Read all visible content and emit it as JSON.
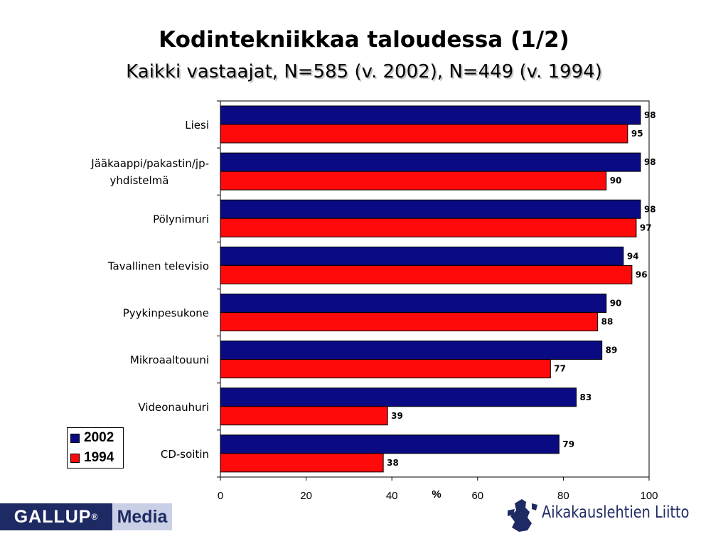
{
  "title": "Kodintekniikkaa taloudessa (1/2)",
  "subtitle": "Kaikki vastaajat, N=585 (v. 2002), N=449 (v. 1994)",
  "chart_data": {
    "type": "bar",
    "orientation": "horizontal",
    "categories": [
      [
        "Liesi"
      ],
      [
        "Jääkaappi/pakastin/jp-",
        "yhdistelmä"
      ],
      [
        "Pölynimuri"
      ],
      [
        "Tavallinen televisio"
      ],
      [
        "Pyykinpesukone"
      ],
      [
        "Mikroaaltouuni"
      ],
      [
        "Videonauhuri"
      ],
      [
        "CD-soitin"
      ]
    ],
    "series": [
      {
        "name": "2002",
        "color": "#0a0a82",
        "values": [
          98,
          98,
          98,
          94,
          90,
          89,
          83,
          79
        ]
      },
      {
        "name": "1994",
        "color": "#ff0a0a",
        "values": [
          95,
          90,
          97,
          96,
          88,
          77,
          39,
          38
        ]
      }
    ],
    "xlabel": "%",
    "xlim": [
      0,
      100
    ],
    "xticks": [
      0,
      20,
      40,
      60,
      80,
      100
    ],
    "legend_placement": "bottom-left",
    "grid": false
  },
  "logos": {
    "gallup_left": "GALLUP",
    "gallup_reg": "®",
    "gallup_right": "Media",
    "aika": "Aikakauslehtien Liitto"
  }
}
